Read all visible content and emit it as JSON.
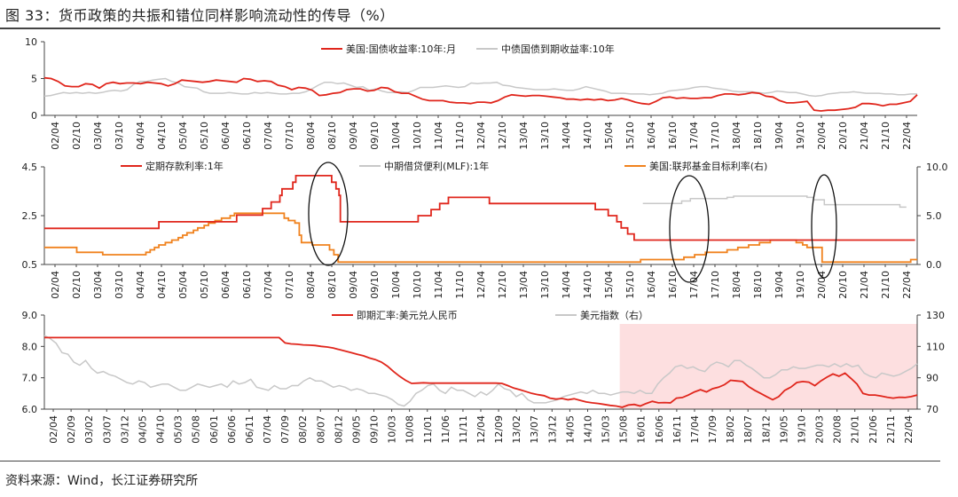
{
  "figure": {
    "title": "图 33：货币政策的共振和错位同样影响流动性的传导（%）",
    "source": "资料来源：Wind，长江证券研究所"
  },
  "colors": {
    "red": "#e0261c",
    "gray": "#c8c8c8",
    "orange": "#f0821e",
    "pink_band": "#fddfe0",
    "axis": "#444444"
  },
  "chart_data": [
    {
      "type": "line",
      "ylim": [
        0,
        10
      ],
      "yticks": [
        "0",
        "5",
        "10"
      ],
      "xticks": [
        "02/04",
        "02/10",
        "03/04",
        "03/10",
        "04/04",
        "04/10",
        "05/04",
        "05/10",
        "06/04",
        "06/10",
        "07/04",
        "07/10",
        "08/04",
        "08/10",
        "09/04",
        "09/10",
        "10/04",
        "10/10",
        "11/04",
        "11/10",
        "12/04",
        "12/10",
        "13/04",
        "13/10",
        "14/04",
        "14/10",
        "15/04",
        "15/10",
        "16/04",
        "16/10",
        "17/04",
        "17/10",
        "18/04",
        "18/10",
        "19/04",
        "19/10",
        "20/04",
        "20/10",
        "21/04",
        "21/10",
        "22/04"
      ],
      "series": [
        {
          "name": "美国:国债收益率:10年:月",
          "color": "red",
          "values": [
            5.1,
            5.0,
            4.6,
            4.0,
            3.9,
            3.9,
            4.3,
            4.2,
            3.7,
            4.3,
            4.5,
            4.3,
            4.4,
            4.4,
            4.3,
            4.5,
            4.4,
            4.3,
            4.0,
            4.3,
            4.8,
            4.7,
            4.6,
            4.5,
            4.6,
            4.8,
            4.7,
            4.6,
            4.5,
            5.0,
            4.9,
            4.6,
            4.7,
            4.6,
            4.1,
            3.9,
            3.5,
            3.8,
            3.7,
            3.4,
            2.7,
            2.8,
            3.0,
            3.1,
            3.5,
            3.6,
            3.6,
            3.3,
            3.4,
            3.8,
            3.7,
            3.2,
            3.0,
            3.0,
            2.6,
            2.2,
            2.0,
            2.0,
            2.0,
            1.8,
            1.7,
            1.7,
            1.6,
            1.8,
            1.8,
            1.7,
            2.0,
            2.5,
            2.8,
            2.7,
            2.6,
            2.7,
            2.7,
            2.6,
            2.5,
            2.4,
            2.2,
            2.2,
            2.1,
            2.2,
            2.1,
            2.2,
            2.0,
            2.1,
            2.3,
            2.1,
            1.8,
            1.6,
            1.5,
            1.9,
            2.4,
            2.5,
            2.3,
            2.4,
            2.3,
            2.3,
            2.4,
            2.4,
            2.7,
            2.9,
            2.9,
            2.8,
            2.9,
            3.1,
            3.0,
            2.6,
            2.5,
            2.0,
            1.7,
            1.7,
            1.8,
            1.9,
            0.7,
            0.6,
            0.7,
            0.7,
            0.8,
            0.9,
            1.1,
            1.6,
            1.6,
            1.5,
            1.3,
            1.5,
            1.5,
            1.7,
            1.9,
            2.8
          ]
        },
        {
          "name": "中债国债到期收益率:10年",
          "color": "gray",
          "values": [
            2.6,
            2.7,
            2.9,
            3.1,
            3.0,
            3.1,
            3.0,
            3.1,
            3.0,
            3.1,
            3.3,
            3.4,
            3.3,
            3.5,
            4.2,
            4.6,
            4.6,
            4.8,
            4.9,
            5.0,
            4.6,
            4.4,
            3.9,
            3.8,
            3.7,
            3.2,
            3.0,
            3.0,
            3.0,
            3.1,
            3.0,
            2.9,
            2.9,
            3.1,
            3.0,
            3.1,
            3.0,
            2.9,
            2.9,
            3.0,
            3.0,
            3.2,
            3.6,
            4.1,
            4.5,
            4.5,
            4.3,
            4.4,
            4.1,
            3.8,
            3.9,
            3.4,
            3.6,
            3.3,
            3.1,
            3.1,
            3.2,
            3.1,
            3.4,
            3.8,
            3.8,
            3.8,
            3.9,
            4.0,
            3.9,
            3.8,
            3.9,
            4.4,
            4.3,
            4.4,
            4.4,
            4.5,
            4.1,
            4.0,
            3.8,
            3.7,
            3.6,
            3.5,
            3.5,
            3.5,
            3.6,
            3.5,
            3.4,
            3.4,
            3.6,
            3.9,
            3.7,
            3.5,
            3.3,
            3.0,
            3.0,
            3.0,
            2.9,
            2.9,
            2.9,
            2.8,
            2.9,
            3.0,
            3.3,
            3.4,
            3.5,
            3.6,
            3.8,
            3.9,
            3.9,
            3.7,
            3.6,
            3.5,
            3.3,
            3.2,
            3.2,
            3.2,
            3.1,
            3.0,
            3.1,
            3.3,
            3.2,
            3.1,
            3.1,
            2.9,
            2.7,
            2.6,
            2.7,
            2.9,
            3.0,
            3.1,
            3.1,
            3.2,
            3.1,
            3.0,
            3.0,
            3.0,
            2.9,
            2.9,
            2.8,
            2.8,
            2.9,
            2.9
          ]
        }
      ]
    },
    {
      "type": "line",
      "ylim": [
        0.5,
        4.5
      ],
      "yticks": [
        "0.5",
        "2.5",
        "4.5"
      ],
      "y2lim": [
        0,
        10
      ],
      "y2ticks": [
        "0.0",
        "5.0",
        "10.0"
      ],
      "xticks": [
        "02/04",
        "02/10",
        "03/04",
        "03/10",
        "04/04",
        "04/10",
        "05/04",
        "05/10",
        "06/04",
        "06/10",
        "07/04",
        "07/10",
        "08/04",
        "08/10",
        "09/04",
        "09/10",
        "10/04",
        "10/10",
        "11/04",
        "11/10",
        "12/04",
        "12/10",
        "13/04",
        "13/10",
        "14/04",
        "14/10",
        "15/04",
        "15/10",
        "16/04",
        "16/10",
        "17/04",
        "17/10",
        "18/04",
        "18/10",
        "19/04",
        "19/10",
        "20/04",
        "20/10",
        "21/04",
        "21/10",
        "22/04"
      ],
      "series": [
        {
          "name": "定期存款利率:1年",
          "color": "red",
          "axis": "left",
          "steps": [
            [
              2002.15,
              1.98
            ],
            [
              2004.8,
              2.25
            ],
            [
              2006.6,
              2.52
            ],
            [
              2007.2,
              2.79
            ],
            [
              2007.4,
              3.06
            ],
            [
              2007.6,
              3.33
            ],
            [
              2007.65,
              3.6
            ],
            [
              2007.9,
              3.87
            ],
            [
              2007.97,
              4.14
            ],
            [
              2008.8,
              3.87
            ],
            [
              2008.9,
              3.6
            ],
            [
              2008.97,
              3.33
            ],
            [
              2009.0,
              2.52
            ],
            [
              2009.0,
              2.25
            ],
            [
              2010.8,
              2.5
            ],
            [
              2011.1,
              2.75
            ],
            [
              2011.3,
              3.0
            ],
            [
              2011.5,
              3.25
            ],
            [
              2012.45,
              3.0
            ],
            [
              2012.55,
              3.0
            ],
            [
              2014.9,
              2.75
            ],
            [
              2015.2,
              2.5
            ],
            [
              2015.4,
              2.25
            ],
            [
              2015.5,
              2.0
            ],
            [
              2015.65,
              1.75
            ],
            [
              2015.8,
              1.5
            ],
            [
              2022.3,
              1.5
            ]
          ]
        },
        {
          "name": "中期借贷便利(MLF):1年",
          "color": "gray",
          "axis": "left",
          "steps": [
            [
              2016.0,
              3.0
            ],
            [
              2016.9,
              3.1
            ],
            [
              2017.1,
              3.2
            ],
            [
              2017.95,
              3.25
            ],
            [
              2018.1,
              3.3
            ],
            [
              2019.8,
              3.25
            ],
            [
              2019.95,
              3.15
            ],
            [
              2020.2,
              2.95
            ],
            [
              2021.95,
              2.85
            ],
            [
              2022.1,
              2.85
            ]
          ]
        },
        {
          "name": "美国:联邦基金目标利率(右)",
          "color": "orange",
          "axis": "right",
          "steps": [
            [
              2002.15,
              1.75
            ],
            [
              2002.9,
              1.25
            ],
            [
              2003.5,
              1.0
            ],
            [
              2004.5,
              1.25
            ],
            [
              2004.6,
              1.5
            ],
            [
              2004.7,
              1.75
            ],
            [
              2004.8,
              2.0
            ],
            [
              2004.95,
              2.25
            ],
            [
              2005.1,
              2.5
            ],
            [
              2005.25,
              2.75
            ],
            [
              2005.35,
              3.0
            ],
            [
              2005.45,
              3.25
            ],
            [
              2005.6,
              3.5
            ],
            [
              2005.7,
              3.75
            ],
            [
              2005.85,
              4.0
            ],
            [
              2005.95,
              4.25
            ],
            [
              2006.1,
              4.5
            ],
            [
              2006.25,
              4.75
            ],
            [
              2006.45,
              5.0
            ],
            [
              2006.55,
              5.25
            ],
            [
              2007.7,
              4.75
            ],
            [
              2007.8,
              4.5
            ],
            [
              2007.95,
              4.25
            ],
            [
              2008.05,
              3.0
            ],
            [
              2008.1,
              2.25
            ],
            [
              2008.35,
              2.0
            ],
            [
              2008.75,
              1.5
            ],
            [
              2008.85,
              1.0
            ],
            [
              2008.95,
              0.25
            ],
            [
              2015.95,
              0.5
            ],
            [
              2016.95,
              0.75
            ],
            [
              2017.2,
              1.0
            ],
            [
              2017.45,
              1.25
            ],
            [
              2017.95,
              1.5
            ],
            [
              2018.2,
              1.75
            ],
            [
              2018.45,
              2.0
            ],
            [
              2018.7,
              2.25
            ],
            [
              2018.95,
              2.5
            ],
            [
              2019.55,
              2.25
            ],
            [
              2019.7,
              2.0
            ],
            [
              2019.8,
              1.75
            ],
            [
              2020.15,
              0.25
            ],
            [
              2022.2,
              0.5
            ],
            [
              2022.35,
              0.5
            ]
          ]
        }
      ]
    },
    {
      "type": "line",
      "ylim": [
        6.0,
        9.0
      ],
      "yticks": [
        "6.0",
        "7.0",
        "8.0",
        "9.0"
      ],
      "y2lim": [
        70,
        130
      ],
      "y2ticks": [
        "70",
        "90",
        "110",
        "130"
      ],
      "xticks": [
        "02/04",
        "02/09",
        "03/02",
        "03/07",
        "03/12",
        "04/05",
        "04/10",
        "05/03",
        "05/08",
        "06/01",
        "06/06",
        "06/11",
        "07/04",
        "07/09",
        "08/02",
        "08/07",
        "08/12",
        "09/05",
        "09/10",
        "10/03",
        "10/08",
        "11/01",
        "11/06",
        "11/11",
        "12/04",
        "12/09",
        "13/02",
        "13/07",
        "13/12",
        "14/05",
        "14/10",
        "15/03",
        "15/08",
        "16/01",
        "16/06",
        "16/11",
        "17/04",
        "17/09",
        "18/02",
        "18/07",
        "18/12",
        "19/05",
        "19/10",
        "20/03",
        "20/08",
        "21/01",
        "21/06",
        "21/11",
        "22/04"
      ],
      "series": [
        {
          "name": "即期汇率:美元兑人民币",
          "color": "red",
          "axis": "left",
          "values": [
            8.28,
            8.28,
            8.28,
            8.28,
            8.28,
            8.28,
            8.28,
            8.28,
            8.28,
            8.28,
            8.28,
            8.28,
            8.28,
            8.28,
            8.28,
            8.28,
            8.28,
            8.28,
            8.28,
            8.28,
            8.28,
            8.28,
            8.28,
            8.28,
            8.28,
            8.28,
            8.28,
            8.28,
            8.28,
            8.28,
            8.28,
            8.28,
            8.28,
            8.28,
            8.28,
            8.28,
            8.28,
            8.28,
            8.28,
            8.28,
            8.11,
            8.08,
            8.07,
            8.05,
            8.04,
            8.03,
            8.0,
            7.98,
            7.95,
            7.9,
            7.85,
            7.8,
            7.75,
            7.7,
            7.63,
            7.58,
            7.5,
            7.37,
            7.2,
            7.05,
            6.92,
            6.82,
            6.83,
            6.84,
            6.83,
            6.83,
            6.83,
            6.83,
            6.83,
            6.83,
            6.83,
            6.83,
            6.83,
            6.83,
            6.83,
            6.83,
            6.82,
            6.75,
            6.67,
            6.62,
            6.56,
            6.5,
            6.46,
            6.43,
            6.35,
            6.32,
            6.34,
            6.3,
            6.33,
            6.28,
            6.23,
            6.2,
            6.18,
            6.15,
            6.12,
            6.1,
            6.06,
            6.13,
            6.15,
            6.1,
            6.18,
            6.25,
            6.2,
            6.21,
            6.2,
            6.35,
            6.37,
            6.45,
            6.55,
            6.62,
            6.55,
            6.65,
            6.7,
            6.78,
            6.92,
            6.9,
            6.88,
            6.72,
            6.6,
            6.5,
            6.4,
            6.3,
            6.4,
            6.6,
            6.7,
            6.85,
            6.88,
            6.86,
            6.75,
            6.9,
            7.02,
            7.12,
            7.05,
            7.15,
            6.98,
            6.8,
            6.5,
            6.45,
            6.45,
            6.42,
            6.38,
            6.35,
            6.38,
            6.37,
            6.4,
            6.45
          ]
        },
        {
          "name": "美元指数（右）",
          "color": "gray",
          "axis": "right",
          "values": [
            117,
            115,
            112,
            106,
            105,
            100,
            98,
            101,
            96,
            93,
            94,
            92,
            91,
            89,
            87,
            86,
            88,
            87,
            84,
            85,
            86,
            86,
            84,
            82,
            82,
            84,
            86,
            85,
            84,
            85,
            86,
            84,
            88,
            86,
            87,
            89,
            84,
            83,
            82,
            85,
            83,
            83,
            85,
            85,
            88,
            90,
            88,
            88,
            86,
            84,
            85,
            84,
            82,
            83,
            82,
            80,
            80,
            79,
            78,
            76,
            73,
            72,
            75,
            80,
            82,
            85,
            86,
            82,
            80,
            84,
            82,
            82,
            80,
            78,
            81,
            79,
            82,
            86,
            83,
            82,
            78,
            80,
            76,
            74,
            74,
            74,
            75,
            76,
            78,
            79,
            80,
            81,
            80,
            82,
            80,
            80,
            79,
            80,
            81,
            81,
            80,
            82,
            80,
            80,
            86,
            90,
            93,
            97,
            98,
            96,
            97,
            95,
            94,
            98,
            100,
            99,
            97,
            101,
            101,
            98,
            96,
            93,
            90,
            90,
            92,
            95,
            95,
            97,
            96,
            96,
            97,
            98,
            98,
            97,
            99,
            97,
            99,
            97,
            98,
            93,
            91,
            90,
            93,
            92,
            91,
            92,
            94,
            96,
            99
          ]
        }
      ]
    }
  ],
  "legends": {
    "p1": [
      "美国:国债收益率:10年:月",
      "中债国债到期收益率:10年"
    ],
    "p2": [
      "定期存款利率:1年",
      "中期借贷便利(MLF):1年",
      "美国:联邦基金目标利率(右)"
    ],
    "p3": [
      "即期汇率:美元兑人民币",
      "美元指数（右）"
    ]
  }
}
